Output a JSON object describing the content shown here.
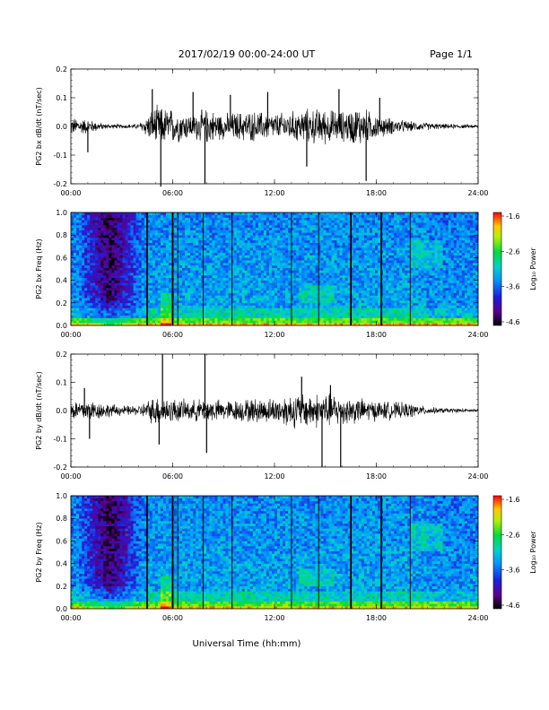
{
  "header": {
    "date_range": "2017/02/19  00:00-24:00 UT",
    "page": "Page 1/1"
  },
  "footer": {
    "xlabel": "Universal Time (hh:mm)"
  },
  "chart_data": [
    {
      "type": "line",
      "ylabel": "PG2 bx dB/dt (nT/sec)",
      "xlim": [
        0,
        24
      ],
      "ylim": [
        -0.2,
        0.2
      ],
      "x_ticks": [
        "00:00",
        "06:00",
        "12:00",
        "18:00",
        "24:00"
      ],
      "y_ticks": [
        "0.2",
        "0.1",
        "0.0",
        "-0.1",
        "-0.2"
      ],
      "envelope": {
        "hours": [
          0,
          1,
          2,
          3,
          4,
          5,
          6,
          7,
          8,
          9,
          10,
          11,
          12,
          13,
          14,
          15,
          16,
          17,
          18,
          19,
          20,
          21,
          22,
          23,
          24
        ],
        "amplitude": [
          0.035,
          0.03,
          0.01,
          0.008,
          0.01,
          0.08,
          0.07,
          0.05,
          0.07,
          0.05,
          0.06,
          0.06,
          0.05,
          0.06,
          0.07,
          0.07,
          0.06,
          0.08,
          0.05,
          0.03,
          0.02,
          0.015,
          0.01,
          0.008,
          0.006
        ]
      },
      "spikes": [
        {
          "x": 1.0,
          "y": -0.09
        },
        {
          "x": 4.8,
          "y": 0.13
        },
        {
          "x": 5.3,
          "y": -0.21
        },
        {
          "x": 7.2,
          "y": 0.12
        },
        {
          "x": 7.9,
          "y": -0.2
        },
        {
          "x": 9.4,
          "y": 0.11
        },
        {
          "x": 11.6,
          "y": 0.12
        },
        {
          "x": 13.9,
          "y": -0.14
        },
        {
          "x": 15.8,
          "y": 0.13
        },
        {
          "x": 17.4,
          "y": -0.19
        },
        {
          "x": 18.2,
          "y": 0.1
        }
      ]
    },
    {
      "type": "heatmap",
      "ylabel": "PG2 bx Freq (Hz)",
      "xlim": [
        0,
        24
      ],
      "ylim": [
        0,
        1
      ],
      "x_ticks": [
        "00:00",
        "06:00",
        "12:00",
        "18:00",
        "24:00"
      ],
      "y_ticks": [
        "1.0",
        "0.8",
        "0.6",
        "0.4",
        "0.2",
        "0.0"
      ],
      "colorbar": {
        "label": "Log₁₀ Power",
        "ticks": [
          "-1.6",
          "-2.6",
          "-3.6",
          "-4.6"
        ],
        "range": [
          -4.6,
          -1.6
        ]
      },
      "gap_lines_hours": [
        4.5,
        6.0,
        6.3,
        7.8,
        9.5,
        13.0,
        14.6,
        16.5,
        18.3,
        20.0
      ]
    },
    {
      "type": "line",
      "ylabel": "PG2 by dB/dt (nT/sec)",
      "xlim": [
        0,
        24
      ],
      "ylim": [
        -0.2,
        0.2
      ],
      "x_ticks": [
        "00:00",
        "06:00",
        "12:00",
        "18:00",
        "24:00"
      ],
      "y_ticks": [
        "0.2",
        "0.1",
        "0.0",
        "-0.1",
        "-0.2"
      ],
      "envelope": {
        "hours": [
          0,
          1,
          2,
          3,
          4,
          5,
          6,
          7,
          8,
          9,
          10,
          11,
          12,
          13,
          14,
          15,
          16,
          17,
          18,
          19,
          20,
          21,
          22,
          23,
          24
        ],
        "amplitude": [
          0.04,
          0.045,
          0.03,
          0.02,
          0.02,
          0.06,
          0.05,
          0.04,
          0.05,
          0.04,
          0.045,
          0.05,
          0.05,
          0.07,
          0.07,
          0.07,
          0.06,
          0.05,
          0.04,
          0.035,
          0.03,
          0.015,
          0.01,
          0.008,
          0.006
        ]
      },
      "spikes": [
        {
          "x": 0.8,
          "y": 0.08
        },
        {
          "x": 1.1,
          "y": -0.1
        },
        {
          "x": 5.4,
          "y": 0.2
        },
        {
          "x": 5.2,
          "y": -0.12
        },
        {
          "x": 7.9,
          "y": 0.2
        },
        {
          "x": 8.0,
          "y": -0.15
        },
        {
          "x": 13.6,
          "y": 0.12
        },
        {
          "x": 14.8,
          "y": -0.2
        },
        {
          "x": 15.3,
          "y": 0.09
        },
        {
          "x": 15.9,
          "y": -0.2
        }
      ]
    },
    {
      "type": "heatmap",
      "ylabel": "PG2 by Freq (Hz)",
      "xlim": [
        0,
        24
      ],
      "ylim": [
        0,
        1
      ],
      "x_ticks": [
        "00:00",
        "06:00",
        "12:00",
        "18:00",
        "24:00"
      ],
      "y_ticks": [
        "1.0",
        "0.8",
        "0.6",
        "0.4",
        "0.2",
        "0.0"
      ],
      "colorbar": {
        "label": "Log₁₀ Power",
        "ticks": [
          "-1.6",
          "-2.6",
          "-3.6",
          "-4.6"
        ],
        "range": [
          -4.6,
          -1.6
        ]
      },
      "gap_lines_hours": [
        4.5,
        6.0,
        6.3,
        7.8,
        9.5,
        13.0,
        14.6,
        16.5,
        18.3,
        20.0
      ]
    }
  ]
}
